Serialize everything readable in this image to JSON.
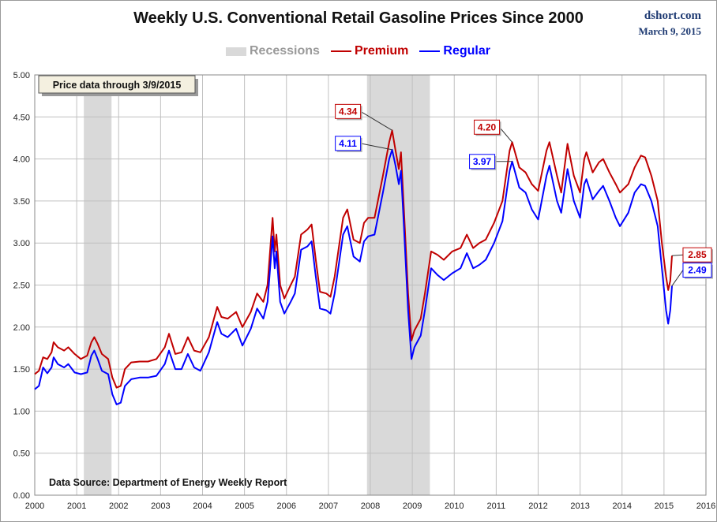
{
  "header": {
    "title": "Weekly U.S. Conventional Retail Gasoline Prices Since 2000",
    "source": "dshort.com",
    "date": "March 9, 2015"
  },
  "colors": {
    "premium": "#c00000",
    "regular": "#0000ff",
    "recession": "#d9d9d9",
    "grid": "#c0c0c0"
  },
  "chart_data": {
    "type": "line",
    "title": "Weekly U.S. Conventional Retail Gasoline Prices Since 2000",
    "xlabel": "",
    "ylabel": "",
    "xlim": [
      2000,
      2016
    ],
    "ylim": [
      0,
      5
    ],
    "x_ticks": [
      "2000",
      "2001",
      "2002",
      "2003",
      "2004",
      "2005",
      "2006",
      "2007",
      "2008",
      "2009",
      "2010",
      "2011",
      "2012",
      "2013",
      "2014",
      "2015",
      "2016"
    ],
    "y_ticks": [
      "0.00",
      "0.50",
      "1.00",
      "1.50",
      "2.00",
      "2.50",
      "3.00",
      "3.50",
      "4.00",
      "4.50",
      "5.00"
    ],
    "grid": true,
    "legend_position": "top-center",
    "legend": {
      "recessions": "Recessions",
      "premium": "Premium",
      "regular": "Regular"
    },
    "recessions": [
      [
        2001.17,
        2001.83
      ],
      [
        2007.92,
        2009.42
      ]
    ],
    "series": [
      {
        "name": "Premium",
        "points": [
          [
            2000.0,
            1.44
          ],
          [
            2000.1,
            1.48
          ],
          [
            2000.2,
            1.64
          ],
          [
            2000.3,
            1.62
          ],
          [
            2000.4,
            1.7
          ],
          [
            2000.45,
            1.82
          ],
          [
            2000.55,
            1.76
          ],
          [
            2000.7,
            1.72
          ],
          [
            2000.8,
            1.76
          ],
          [
            2000.95,
            1.68
          ],
          [
            2001.1,
            1.62
          ],
          [
            2001.25,
            1.66
          ],
          [
            2001.35,
            1.82
          ],
          [
            2001.42,
            1.88
          ],
          [
            2001.5,
            1.8
          ],
          [
            2001.6,
            1.68
          ],
          [
            2001.75,
            1.62
          ],
          [
            2001.85,
            1.4
          ],
          [
            2001.95,
            1.28
          ],
          [
            2002.05,
            1.3
          ],
          [
            2002.15,
            1.5
          ],
          [
            2002.3,
            1.58
          ],
          [
            2002.5,
            1.59
          ],
          [
            2002.7,
            1.59
          ],
          [
            2002.9,
            1.62
          ],
          [
            2003.1,
            1.76
          ],
          [
            2003.2,
            1.92
          ],
          [
            2003.35,
            1.68
          ],
          [
            2003.5,
            1.7
          ],
          [
            2003.65,
            1.88
          ],
          [
            2003.8,
            1.72
          ],
          [
            2003.95,
            1.7
          ],
          [
            2004.15,
            1.88
          ],
          [
            2004.35,
            2.24
          ],
          [
            2004.45,
            2.12
          ],
          [
            2004.6,
            2.1
          ],
          [
            2004.8,
            2.18
          ],
          [
            2004.95,
            2.0
          ],
          [
            2005.15,
            2.18
          ],
          [
            2005.3,
            2.4
          ],
          [
            2005.45,
            2.3
          ],
          [
            2005.55,
            2.5
          ],
          [
            2005.67,
            3.3
          ],
          [
            2005.72,
            2.9
          ],
          [
            2005.76,
            3.1
          ],
          [
            2005.85,
            2.5
          ],
          [
            2005.95,
            2.34
          ],
          [
            2006.1,
            2.5
          ],
          [
            2006.2,
            2.6
          ],
          [
            2006.35,
            3.1
          ],
          [
            2006.5,
            3.16
          ],
          [
            2006.6,
            3.22
          ],
          [
            2006.7,
            2.8
          ],
          [
            2006.8,
            2.42
          ],
          [
            2006.95,
            2.4
          ],
          [
            2007.05,
            2.36
          ],
          [
            2007.15,
            2.6
          ],
          [
            2007.35,
            3.3
          ],
          [
            2007.45,
            3.4
          ],
          [
            2007.6,
            3.04
          ],
          [
            2007.75,
            3.0
          ],
          [
            2007.85,
            3.24
          ],
          [
            2007.95,
            3.3
          ],
          [
            2008.1,
            3.3
          ],
          [
            2008.3,
            3.8
          ],
          [
            2008.45,
            4.2
          ],
          [
            2008.52,
            4.34
          ],
          [
            2008.6,
            4.1
          ],
          [
            2008.68,
            3.88
          ],
          [
            2008.73,
            4.08
          ],
          [
            2008.8,
            3.4
          ],
          [
            2008.9,
            2.4
          ],
          [
            2008.98,
            1.84
          ],
          [
            2009.05,
            1.96
          ],
          [
            2009.2,
            2.1
          ],
          [
            2009.3,
            2.4
          ],
          [
            2009.45,
            2.9
          ],
          [
            2009.6,
            2.86
          ],
          [
            2009.75,
            2.8
          ],
          [
            2009.95,
            2.9
          ],
          [
            2010.15,
            2.94
          ],
          [
            2010.3,
            3.1
          ],
          [
            2010.45,
            2.94
          ],
          [
            2010.6,
            3.0
          ],
          [
            2010.75,
            3.04
          ],
          [
            2010.95,
            3.24
          ],
          [
            2011.15,
            3.5
          ],
          [
            2011.32,
            4.1
          ],
          [
            2011.38,
            4.2
          ],
          [
            2011.55,
            3.9
          ],
          [
            2011.7,
            3.84
          ],
          [
            2011.85,
            3.7
          ],
          [
            2012.0,
            3.62
          ],
          [
            2012.2,
            4.1
          ],
          [
            2012.27,
            4.2
          ],
          [
            2012.45,
            3.8
          ],
          [
            2012.55,
            3.6
          ],
          [
            2012.7,
            4.18
          ],
          [
            2012.85,
            3.8
          ],
          [
            2013.0,
            3.6
          ],
          [
            2013.1,
            4.0
          ],
          [
            2013.15,
            4.08
          ],
          [
            2013.3,
            3.84
          ],
          [
            2013.45,
            3.96
          ],
          [
            2013.55,
            4.0
          ],
          [
            2013.7,
            3.84
          ],
          [
            2013.85,
            3.7
          ],
          [
            2013.95,
            3.6
          ],
          [
            2014.15,
            3.7
          ],
          [
            2014.3,
            3.9
          ],
          [
            2014.45,
            4.04
          ],
          [
            2014.55,
            4.02
          ],
          [
            2014.7,
            3.8
          ],
          [
            2014.85,
            3.5
          ],
          [
            2014.95,
            3.0
          ],
          [
            2015.05,
            2.6
          ],
          [
            2015.1,
            2.44
          ],
          [
            2015.15,
            2.55
          ],
          [
            2015.19,
            2.85
          ]
        ]
      },
      {
        "name": "Regular",
        "points": [
          [
            2000.0,
            1.26
          ],
          [
            2000.1,
            1.3
          ],
          [
            2000.2,
            1.52
          ],
          [
            2000.3,
            1.45
          ],
          [
            2000.4,
            1.52
          ],
          [
            2000.45,
            1.64
          ],
          [
            2000.55,
            1.56
          ],
          [
            2000.7,
            1.52
          ],
          [
            2000.8,
            1.56
          ],
          [
            2000.95,
            1.46
          ],
          [
            2001.1,
            1.44
          ],
          [
            2001.25,
            1.46
          ],
          [
            2001.35,
            1.66
          ],
          [
            2001.42,
            1.72
          ],
          [
            2001.5,
            1.62
          ],
          [
            2001.6,
            1.48
          ],
          [
            2001.75,
            1.44
          ],
          [
            2001.85,
            1.2
          ],
          [
            2001.95,
            1.08
          ],
          [
            2002.05,
            1.1
          ],
          [
            2002.15,
            1.3
          ],
          [
            2002.3,
            1.38
          ],
          [
            2002.5,
            1.4
          ],
          [
            2002.7,
            1.4
          ],
          [
            2002.9,
            1.42
          ],
          [
            2003.1,
            1.56
          ],
          [
            2003.2,
            1.72
          ],
          [
            2003.35,
            1.5
          ],
          [
            2003.5,
            1.5
          ],
          [
            2003.65,
            1.68
          ],
          [
            2003.8,
            1.52
          ],
          [
            2003.95,
            1.48
          ],
          [
            2004.15,
            1.7
          ],
          [
            2004.35,
            2.06
          ],
          [
            2004.45,
            1.92
          ],
          [
            2004.6,
            1.88
          ],
          [
            2004.8,
            1.98
          ],
          [
            2004.95,
            1.78
          ],
          [
            2005.15,
            1.98
          ],
          [
            2005.3,
            2.22
          ],
          [
            2005.45,
            2.1
          ],
          [
            2005.55,
            2.3
          ],
          [
            2005.67,
            3.08
          ],
          [
            2005.72,
            2.7
          ],
          [
            2005.76,
            2.9
          ],
          [
            2005.85,
            2.3
          ],
          [
            2005.95,
            2.16
          ],
          [
            2006.1,
            2.3
          ],
          [
            2006.2,
            2.4
          ],
          [
            2006.35,
            2.92
          ],
          [
            2006.5,
            2.96
          ],
          [
            2006.6,
            3.02
          ],
          [
            2006.7,
            2.6
          ],
          [
            2006.8,
            2.22
          ],
          [
            2006.95,
            2.2
          ],
          [
            2007.05,
            2.16
          ],
          [
            2007.15,
            2.4
          ],
          [
            2007.35,
            3.1
          ],
          [
            2007.45,
            3.2
          ],
          [
            2007.6,
            2.84
          ],
          [
            2007.75,
            2.78
          ],
          [
            2007.85,
            3.02
          ],
          [
            2007.95,
            3.08
          ],
          [
            2008.1,
            3.1
          ],
          [
            2008.3,
            3.6
          ],
          [
            2008.45,
            4.0
          ],
          [
            2008.52,
            4.11
          ],
          [
            2008.6,
            3.92
          ],
          [
            2008.68,
            3.7
          ],
          [
            2008.73,
            3.86
          ],
          [
            2008.8,
            3.2
          ],
          [
            2008.9,
            2.2
          ],
          [
            2008.98,
            1.62
          ],
          [
            2009.05,
            1.76
          ],
          [
            2009.2,
            1.9
          ],
          [
            2009.3,
            2.2
          ],
          [
            2009.45,
            2.7
          ],
          [
            2009.6,
            2.62
          ],
          [
            2009.75,
            2.56
          ],
          [
            2009.95,
            2.64
          ],
          [
            2010.15,
            2.7
          ],
          [
            2010.3,
            2.88
          ],
          [
            2010.45,
            2.7
          ],
          [
            2010.6,
            2.74
          ],
          [
            2010.75,
            2.8
          ],
          [
            2010.95,
            3.0
          ],
          [
            2011.15,
            3.26
          ],
          [
            2011.32,
            3.86
          ],
          [
            2011.38,
            3.97
          ],
          [
            2011.55,
            3.66
          ],
          [
            2011.7,
            3.6
          ],
          [
            2011.85,
            3.4
          ],
          [
            2012.0,
            3.28
          ],
          [
            2012.2,
            3.8
          ],
          [
            2012.27,
            3.92
          ],
          [
            2012.45,
            3.5
          ],
          [
            2012.55,
            3.36
          ],
          [
            2012.7,
            3.88
          ],
          [
            2012.85,
            3.5
          ],
          [
            2013.0,
            3.3
          ],
          [
            2013.1,
            3.7
          ],
          [
            2013.15,
            3.76
          ],
          [
            2013.3,
            3.52
          ],
          [
            2013.45,
            3.62
          ],
          [
            2013.55,
            3.68
          ],
          [
            2013.7,
            3.5
          ],
          [
            2013.85,
            3.3
          ],
          [
            2013.95,
            3.2
          ],
          [
            2014.15,
            3.36
          ],
          [
            2014.3,
            3.6
          ],
          [
            2014.45,
            3.7
          ],
          [
            2014.55,
            3.68
          ],
          [
            2014.7,
            3.5
          ],
          [
            2014.85,
            3.2
          ],
          [
            2014.95,
            2.7
          ],
          [
            2015.05,
            2.2
          ],
          [
            2015.1,
            2.04
          ],
          [
            2015.15,
            2.2
          ],
          [
            2015.19,
            2.49
          ]
        ]
      }
    ],
    "annotations": [
      {
        "text": "4.34",
        "series": "premium",
        "x": 2008.52,
        "y": 4.34
      },
      {
        "text": "4.11",
        "series": "regular",
        "x": 2008.52,
        "y": 4.11
      },
      {
        "text": "4.20",
        "series": "premium",
        "x": 2011.38,
        "y": 4.2
      },
      {
        "text": "3.97",
        "series": "regular",
        "x": 2011.38,
        "y": 3.97
      },
      {
        "text": "2.85",
        "series": "premium",
        "x": 2015.19,
        "y": 2.85
      },
      {
        "text": "2.49",
        "series": "regular",
        "x": 2015.19,
        "y": 2.49
      }
    ],
    "notes": {
      "price_through": "Price data through 3/9/2015",
      "data_source": "Data Source: Department of Energy Weekly Report"
    }
  }
}
